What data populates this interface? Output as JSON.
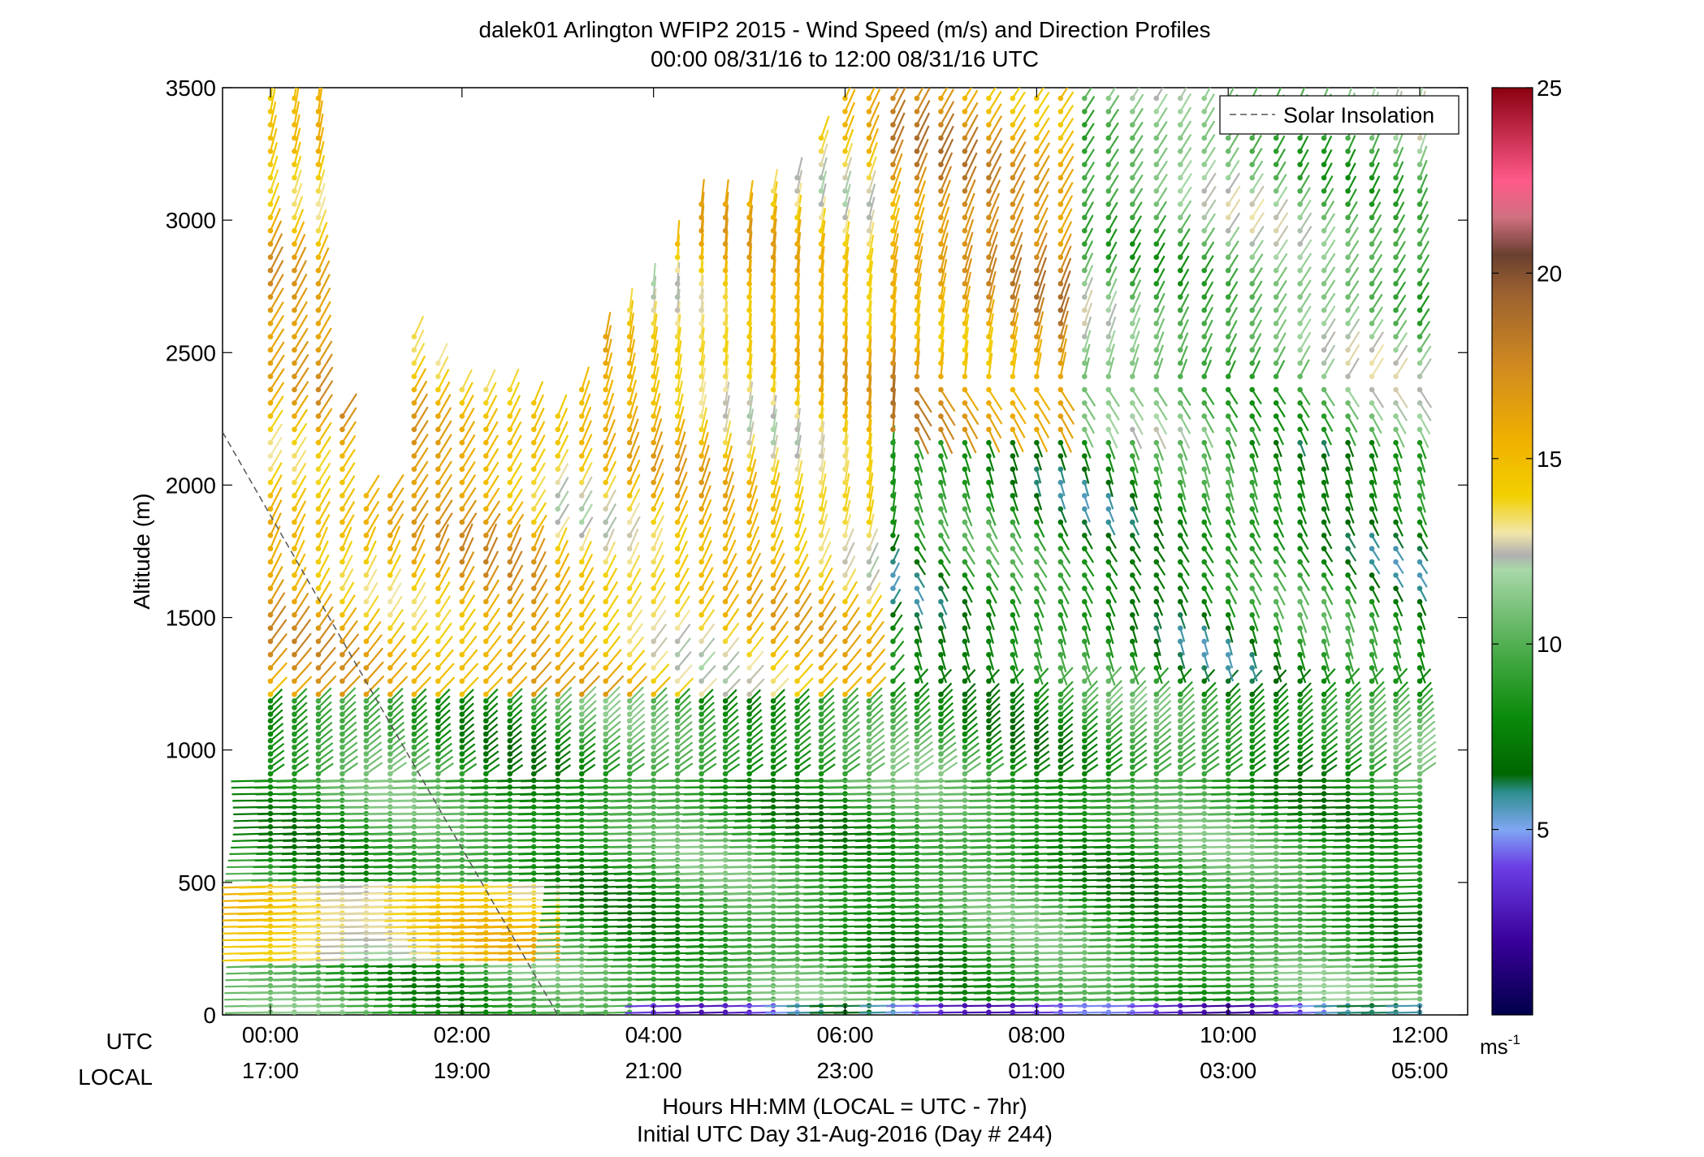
{
  "chart_data": {
    "type": "wind-barb-profile",
    "title": "dalek01 Arlington WFIP2 2015 - Wind Speed (m/s) and Direction Profiles",
    "subtitle": "00:00 08/31/16 to 12:00 08/31/16  UTC",
    "ylabel": "Altitude (m)",
    "xlabel": "Hours HH:MM  (LOCAL = UTC - 7hr)",
    "xlabel2": "Initial UTC Day 31-Aug-2016 (Day # 244)",
    "xrow_labels": [
      "UTC",
      "LOCAL"
    ],
    "x_range_hours": [
      -0.5,
      12.5
    ],
    "ylim": [
      0,
      3500
    ],
    "yticks": [
      0,
      500,
      1000,
      1500,
      2000,
      2500,
      3000,
      3500
    ],
    "utc_ticks": [
      "00:00",
      "02:00",
      "04:00",
      "06:00",
      "08:00",
      "10:00",
      "12:00"
    ],
    "local_ticks": [
      "17:00",
      "19:00",
      "21:00",
      "23:00",
      "01:00",
      "03:00",
      "05:00"
    ],
    "tick_hours": [
      0,
      2,
      4,
      6,
      8,
      10,
      12
    ],
    "legend": {
      "label": "Solar Insolation",
      "placement": "top-right"
    },
    "solar_insolation_line": {
      "hours": [
        -0.5,
        3.0
      ],
      "altitudes": [
        2200,
        0
      ]
    },
    "colorbar": {
      "unit_base": "ms",
      "unit_exp": "-1",
      "range": [
        0,
        25
      ],
      "ticks": [
        5,
        10,
        15,
        20,
        25
      ],
      "stops": [
        {
          "v": 0,
          "c": "#00004a"
        },
        {
          "v": 2,
          "c": "#3a009a"
        },
        {
          "v": 4,
          "c": "#6b3fe6"
        },
        {
          "v": 5,
          "c": "#7fa6f2"
        },
        {
          "v": 6,
          "c": "#2e8f8f"
        },
        {
          "v": 6.5,
          "c": "#006600"
        },
        {
          "v": 8,
          "c": "#0a8a0a"
        },
        {
          "v": 9.5,
          "c": "#3ea63e"
        },
        {
          "v": 11,
          "c": "#7cc27c"
        },
        {
          "v": 12,
          "c": "#a8d8a8"
        },
        {
          "v": 12.4,
          "c": "#b0b0b0"
        },
        {
          "v": 13,
          "c": "#f2e6a8"
        },
        {
          "v": 14,
          "c": "#f2d000"
        },
        {
          "v": 15.5,
          "c": "#f0b000"
        },
        {
          "v": 17.5,
          "c": "#d08a20"
        },
        {
          "v": 19.5,
          "c": "#9a6030"
        },
        {
          "v": 20.5,
          "c": "#6a4030"
        },
        {
          "v": 21.5,
          "c": "#d07080"
        },
        {
          "v": 22.5,
          "c": "#ff5a8a"
        },
        {
          "v": 25,
          "c": "#8a0010"
        }
      ]
    },
    "series_description_free": true,
    "profiles": {
      "time_step_hours": 0.25,
      "start_hour": 0,
      "end_hour": 12,
      "height_step_m": 25,
      "upper_height_step_m": 50,
      "top_height_by_hour": [
        [
          0,
          3500
        ],
        [
          0.5,
          3500
        ],
        [
          0.75,
          2300
        ],
        [
          1.0,
          2000
        ],
        [
          1.25,
          2000
        ],
        [
          1.5,
          2600
        ],
        [
          2.0,
          2400
        ],
        [
          2.5,
          2400
        ],
        [
          3.0,
          2300
        ],
        [
          3.25,
          2400
        ],
        [
          3.5,
          2600
        ],
        [
          4.0,
          2800
        ],
        [
          4.5,
          3100
        ],
        [
          5.0,
          3100
        ],
        [
          5.5,
          3200
        ],
        [
          6.0,
          3500
        ],
        [
          6.5,
          3500
        ],
        [
          12.0,
          3500
        ]
      ],
      "speed_regimes": [
        {
          "hours": [
            0,
            12
          ],
          "alt": [
            0,
            200
          ],
          "speed": 9.5
        },
        {
          "hours": [
            0,
            3
          ],
          "alt": [
            200,
            500
          ],
          "speed": 13.5
        },
        {
          "hours": [
            0,
            12
          ],
          "alt": [
            500,
            1200
          ],
          "speed": 9.0
        },
        {
          "hours": [
            0,
            3
          ],
          "alt": [
            1200,
            3500
          ],
          "speed": 15.5
        },
        {
          "hours": [
            3,
            6.5
          ],
          "alt": [
            1200,
            3500
          ],
          "speed": 14.5
        },
        {
          "hours": [
            6.5,
            8.5
          ],
          "alt": [
            2200,
            3500
          ],
          "speed": 16.5
        },
        {
          "hours": [
            6.5,
            12
          ],
          "alt": [
            1200,
            2200
          ],
          "speed": 8.0
        },
        {
          "hours": [
            8.5,
            12
          ],
          "alt": [
            2200,
            3500
          ],
          "speed": 10.5
        },
        {
          "hours": [
            4,
            12
          ],
          "alt": [
            0,
            60
          ],
          "speed": 4.0
        }
      ]
    }
  }
}
